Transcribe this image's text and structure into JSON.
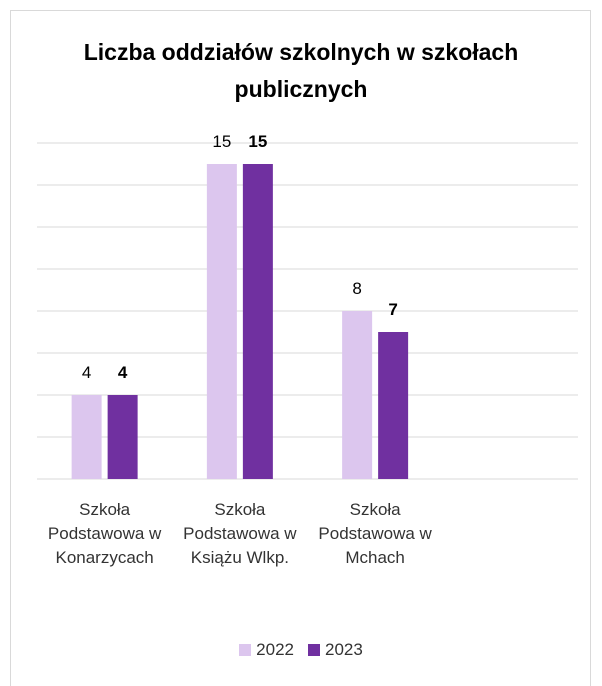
{
  "chart_data": {
    "type": "bar",
    "title": "Liczba oddziałów szkolnych w szkołach publicznych",
    "categories": [
      "Szkoła Podstawowa w Konarzycach",
      "Szkoła Podstawowa w Książu Wlkp.",
      "Szkoła Podstawowa w Mchach"
    ],
    "series": [
      {
        "name": "2022",
        "color": "#dcc6ee",
        "values": [
          4,
          15,
          8
        ]
      },
      {
        "name": "2023",
        "color": "#7030a0",
        "values": [
          4,
          15,
          7
        ]
      }
    ],
    "ylim": [
      0,
      16
    ],
    "yticks": [
      0,
      2,
      4,
      6,
      8,
      10,
      12,
      14,
      16
    ],
    "grid": true,
    "legend": "bottom"
  }
}
